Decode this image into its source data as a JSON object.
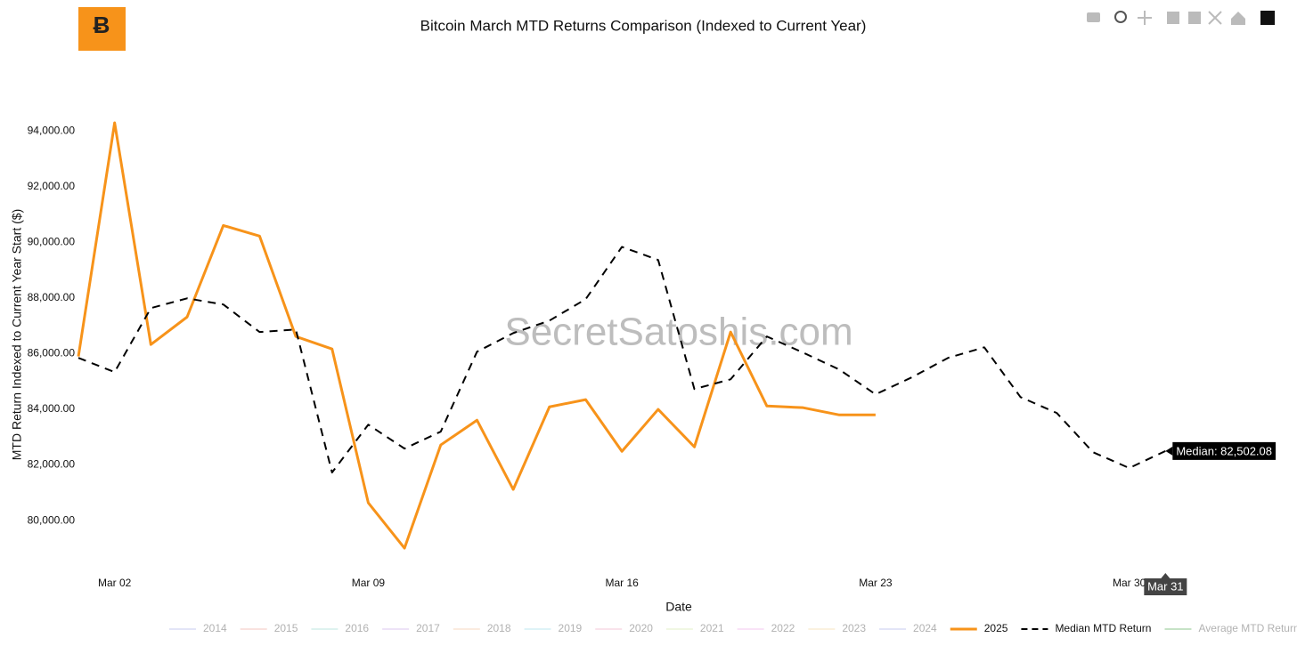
{
  "chart_data": {
    "type": "line",
    "title": "Bitcoin March MTD Returns Comparison (Indexed to Current Year)",
    "x_label": "Date",
    "y_label": "MTD Return Indexed to Current Year Start ($)",
    "watermark": "SecretSatoshis.com",
    "x": [
      1,
      2,
      3,
      4,
      5,
      6,
      7,
      8,
      9,
      10,
      11,
      12,
      13,
      14,
      15,
      16,
      17,
      18,
      19,
      20,
      21,
      22,
      23,
      24,
      25,
      26,
      27,
      28,
      29,
      30,
      31
    ],
    "xlim": [
      1,
      32
    ],
    "xticks": [
      {
        "value": 2,
        "label": "Mar 02"
      },
      {
        "value": 9,
        "label": "Mar 09"
      },
      {
        "value": 16,
        "label": "Mar 16"
      },
      {
        "value": 23,
        "label": "Mar 23"
      },
      {
        "value": 30,
        "label": "Mar 30"
      }
    ],
    "ylim": [
      78500,
      95500
    ],
    "yticks": [
      {
        "value": 80000,
        "label": "80,000.00"
      },
      {
        "value": 82000,
        "label": "82,000.00"
      },
      {
        "value": 84000,
        "label": "84,000.00"
      },
      {
        "value": 86000,
        "label": "86,000.00"
      },
      {
        "value": 88000,
        "label": "88,000.00"
      },
      {
        "value": 90000,
        "label": "90,000.00"
      },
      {
        "value": 92000,
        "label": "92,000.00"
      },
      {
        "value": 94000,
        "label": "94,000.00"
      }
    ],
    "grid": false,
    "series": [
      {
        "name": "2014",
        "color": "#c9cdf0",
        "visible": false
      },
      {
        "name": "2015",
        "color": "#f4c6c0",
        "visible": false
      },
      {
        "name": "2016",
        "color": "#bfe6e0",
        "visible": false
      },
      {
        "name": "2017",
        "color": "#dcc8f0",
        "visible": false
      },
      {
        "name": "2018",
        "color": "#f8d8c0",
        "visible": false
      },
      {
        "name": "2019",
        "color": "#bfe8f0",
        "visible": false
      },
      {
        "name": "2020",
        "color": "#f4c8d8",
        "visible": false
      },
      {
        "name": "2021",
        "color": "#e2f0c8",
        "visible": false
      },
      {
        "name": "2022",
        "color": "#f4c8f0",
        "visible": false
      },
      {
        "name": "2023",
        "color": "#f8e4c0",
        "visible": false
      },
      {
        "name": "2024",
        "color": "#c9cdf0",
        "visible": false
      },
      {
        "name": "2025",
        "color": "#f7931a",
        "dash": "solid",
        "visible": true,
        "values": [
          85900,
          94300,
          86330,
          87320,
          90610,
          90230,
          86620,
          86170,
          80640,
          79010,
          82720,
          83610,
          81120,
          84090,
          84350,
          82490,
          84000,
          82650,
          86780,
          84120,
          84060,
          83800,
          83800,
          null,
          null,
          null,
          null,
          null,
          null,
          null,
          null
        ]
      },
      {
        "name": "Median MTD Return",
        "color": "#000000",
        "dash": "dashed",
        "visible": true,
        "values": [
          85850,
          85340,
          87640,
          87990,
          87770,
          86780,
          86870,
          81730,
          83450,
          82590,
          83200,
          86070,
          86740,
          87190,
          87960,
          89840,
          89370,
          84730,
          85080,
          86620,
          86040,
          85430,
          84540,
          85150,
          85850,
          86230,
          84440,
          83870,
          82460,
          81890,
          82502.08
        ]
      },
      {
        "name": "Average MTD Return",
        "color": "#8fc98f",
        "visible": false
      }
    ],
    "hover": {
      "label": "Median: 82,502.08",
      "x_label": "Mar 31"
    }
  }
}
